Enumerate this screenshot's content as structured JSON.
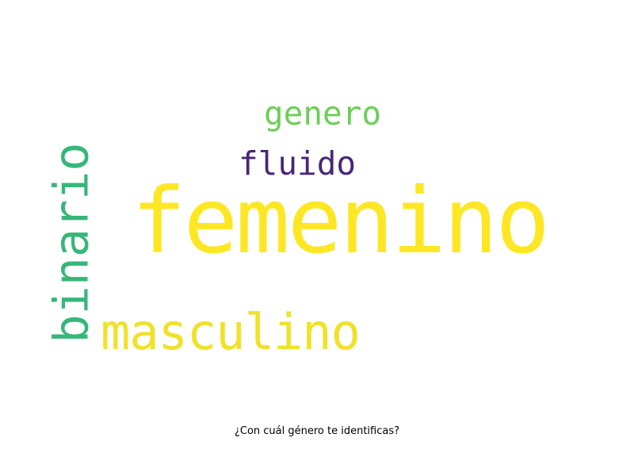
{
  "words": [
    {
      "text": "femenino",
      "color": "#fde725"
    },
    {
      "text": "masculino",
      "color": "#f0e12a"
    },
    {
      "text": "binario",
      "color": "#35b779"
    },
    {
      "text": "genero",
      "color": "#6ece58"
    },
    {
      "text": "fluido",
      "color": "#482677"
    }
  ],
  "caption": "¿Con cuál género te identificas?"
}
